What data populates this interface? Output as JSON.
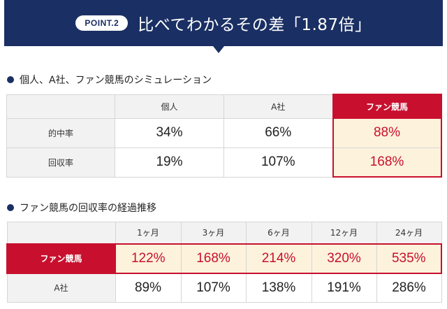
{
  "banner": {
    "point_label": "POINT.2",
    "title": "比べてわかるその差「1.87倍」"
  },
  "section1": {
    "heading": "個人、A社、ファン競馬のシミュレーション",
    "columns": [
      "",
      "個人",
      "A社",
      "ファン競馬"
    ],
    "rows": [
      {
        "label": "的中率",
        "values": [
          "34%",
          "66%",
          "88%"
        ]
      },
      {
        "label": "回収率",
        "values": [
          "19%",
          "107%",
          "168%"
        ]
      }
    ]
  },
  "section2": {
    "heading": "ファン競馬の回収率の経過推移",
    "columns": [
      "",
      "1ヶ月",
      "3ヶ月",
      "6ヶ月",
      "12ヶ月",
      "24ヶ月"
    ],
    "rows": [
      {
        "label": "ファン競馬",
        "values": [
          "122%",
          "168%",
          "214%",
          "320%",
          "535%"
        ]
      },
      {
        "label": "A社",
        "values": [
          "89%",
          "107%",
          "138%",
          "191%",
          "286%"
        ]
      }
    ]
  },
  "colors": {
    "navy": "#1a2f63",
    "accent_red": "#c8102e",
    "highlight_fill": "#fdf2dc"
  }
}
